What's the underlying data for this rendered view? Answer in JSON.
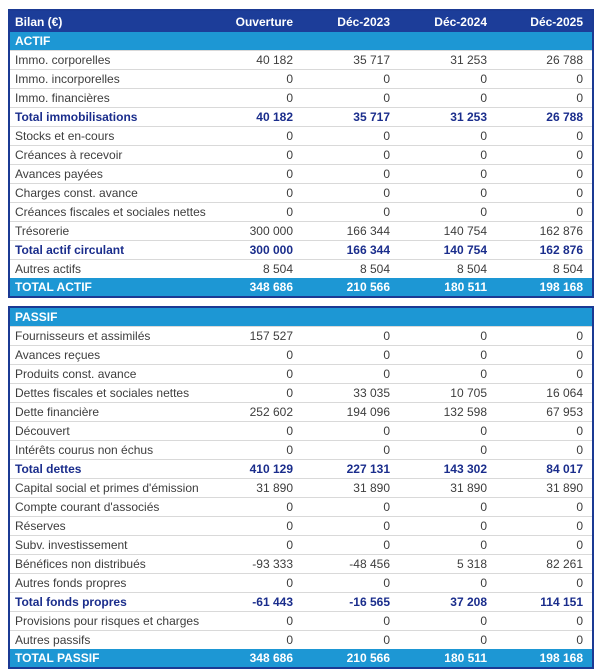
{
  "palette": {
    "header_navy": "#1c3d99",
    "table_border_navy": "#1b3a94",
    "section_blue": "#1d97d4",
    "subtotal_text_navy": "#1a2d8c",
    "row_text_gray": "#3d3d3d",
    "row_divider_gray": "#d9d9d9",
    "header_text": "#ffffff"
  },
  "header": {
    "title": "Bilan (€)",
    "columns": [
      "Ouverture",
      "Déc-2023",
      "Déc-2024",
      "Déc-2025"
    ]
  },
  "tables": {
    "actif": {
      "rows": [
        {
          "style": "section",
          "label": "ACTIF"
        },
        {
          "style": "normal",
          "label": "Immo. corporelles",
          "values": [
            "40 182",
            "35 717",
            "31 253",
            "26 788"
          ]
        },
        {
          "style": "normal",
          "label": "Immo. incorporelles",
          "values": [
            "0",
            "0",
            "0",
            "0"
          ]
        },
        {
          "style": "normal",
          "label": "Immo. financières",
          "values": [
            "0",
            "0",
            "0",
            "0"
          ]
        },
        {
          "style": "subtotal",
          "label": "Total immobilisations",
          "values": [
            "40 182",
            "35 717",
            "31 253",
            "26 788"
          ]
        },
        {
          "style": "normal",
          "label": "Stocks et en-cours",
          "values": [
            "0",
            "0",
            "0",
            "0"
          ]
        },
        {
          "style": "normal",
          "label": "Créances à recevoir",
          "values": [
            "0",
            "0",
            "0",
            "0"
          ]
        },
        {
          "style": "normal",
          "label": "Avances payées",
          "values": [
            "0",
            "0",
            "0",
            "0"
          ]
        },
        {
          "style": "normal",
          "label": "Charges const. avance",
          "values": [
            "0",
            "0",
            "0",
            "0"
          ]
        },
        {
          "style": "normal",
          "label": "Créances fiscales et sociales nettes",
          "values": [
            "0",
            "0",
            "0",
            "0"
          ]
        },
        {
          "style": "normal",
          "label": "Trésorerie",
          "values": [
            "300 000",
            "166 344",
            "140 754",
            "162 876"
          ]
        },
        {
          "style": "subtotal",
          "label": "Total actif circulant",
          "values": [
            "300 000",
            "166 344",
            "140 754",
            "162 876"
          ]
        },
        {
          "style": "normal",
          "label": "Autres actifs",
          "values": [
            "8 504",
            "8 504",
            "8 504",
            "8 504"
          ]
        },
        {
          "style": "grand",
          "label": "TOTAL ACTIF",
          "values": [
            "348 686",
            "210 566",
            "180 511",
            "198 168"
          ]
        }
      ]
    },
    "passif": {
      "rows": [
        {
          "style": "section",
          "label": "PASSIF"
        },
        {
          "style": "normal",
          "label": "Fournisseurs et assimilés",
          "values": [
            "157 527",
            "0",
            "0",
            "0"
          ]
        },
        {
          "style": "normal",
          "label": "Avances reçues",
          "values": [
            "0",
            "0",
            "0",
            "0"
          ]
        },
        {
          "style": "normal",
          "label": "Produits const. avance",
          "values": [
            "0",
            "0",
            "0",
            "0"
          ]
        },
        {
          "style": "normal",
          "label": "Dettes fiscales et sociales nettes",
          "values": [
            "0",
            "33 035",
            "10 705",
            "16 064"
          ]
        },
        {
          "style": "normal",
          "label": "Dette financière",
          "values": [
            "252 602",
            "194 096",
            "132 598",
            "67 953"
          ]
        },
        {
          "style": "normal",
          "label": "Découvert",
          "values": [
            "0",
            "0",
            "0",
            "0"
          ]
        },
        {
          "style": "normal",
          "label": "Intérêts courus non échus",
          "values": [
            "0",
            "0",
            "0",
            "0"
          ]
        },
        {
          "style": "subtotal",
          "label": "Total dettes",
          "values": [
            "410 129",
            "227 131",
            "143 302",
            "84 017"
          ]
        },
        {
          "style": "normal",
          "label": "Capital social et primes d'émission",
          "values": [
            "31 890",
            "31 890",
            "31 890",
            "31 890"
          ]
        },
        {
          "style": "normal",
          "label": "Compte courant d'associés",
          "values": [
            "0",
            "0",
            "0",
            "0"
          ]
        },
        {
          "style": "normal",
          "label": "Réserves",
          "values": [
            "0",
            "0",
            "0",
            "0"
          ]
        },
        {
          "style": "normal",
          "label": "Subv. investissement",
          "values": [
            "0",
            "0",
            "0",
            "0"
          ]
        },
        {
          "style": "normal",
          "label": "Bénéfices non distribués",
          "values": [
            "-93 333",
            "-48 456",
            "5 318",
            "82 261"
          ]
        },
        {
          "style": "normal",
          "label": "Autres fonds propres",
          "values": [
            "0",
            "0",
            "0",
            "0"
          ]
        },
        {
          "style": "subtotal",
          "label": "Total fonds propres",
          "values": [
            "-61 443",
            "-16 565",
            "37 208",
            "114 151"
          ]
        },
        {
          "style": "normal",
          "label": "Provisions pour risques et charges",
          "values": [
            "0",
            "0",
            "0",
            "0"
          ]
        },
        {
          "style": "normal",
          "label": "Autres passifs",
          "values": [
            "0",
            "0",
            "0",
            "0"
          ]
        },
        {
          "style": "grand",
          "label": "TOTAL PASSIF",
          "values": [
            "348 686",
            "210 566",
            "180 511",
            "198 168"
          ]
        }
      ]
    }
  },
  "chart_data": {
    "type": "table",
    "title": "Bilan (€)",
    "columns": [
      "Ouverture",
      "Déc-2023",
      "Déc-2024",
      "Déc-2025"
    ],
    "sections": [
      {
        "name": "ACTIF",
        "rows": [
          {
            "label": "Immo. corporelles",
            "values": [
              40182,
              35717,
              31253,
              26788
            ]
          },
          {
            "label": "Immo. incorporelles",
            "values": [
              0,
              0,
              0,
              0
            ]
          },
          {
            "label": "Immo. financières",
            "values": [
              0,
              0,
              0,
              0
            ]
          },
          {
            "label": "Total immobilisations",
            "values": [
              40182,
              35717,
              31253,
              26788
            ],
            "emphasis": "subtotal"
          },
          {
            "label": "Stocks et en-cours",
            "values": [
              0,
              0,
              0,
              0
            ]
          },
          {
            "label": "Créances à recevoir",
            "values": [
              0,
              0,
              0,
              0
            ]
          },
          {
            "label": "Avances payées",
            "values": [
              0,
              0,
              0,
              0
            ]
          },
          {
            "label": "Charges const. avance",
            "values": [
              0,
              0,
              0,
              0
            ]
          },
          {
            "label": "Créances fiscales et sociales nettes",
            "values": [
              0,
              0,
              0,
              0
            ]
          },
          {
            "label": "Trésorerie",
            "values": [
              300000,
              166344,
              140754,
              162876
            ]
          },
          {
            "label": "Total actif circulant",
            "values": [
              300000,
              166344,
              140754,
              162876
            ],
            "emphasis": "subtotal"
          },
          {
            "label": "Autres actifs",
            "values": [
              8504,
              8504,
              8504,
              8504
            ]
          },
          {
            "label": "TOTAL ACTIF",
            "values": [
              348686,
              210566,
              180511,
              198168
            ],
            "emphasis": "total"
          }
        ]
      },
      {
        "name": "PASSIF",
        "rows": [
          {
            "label": "Fournisseurs et assimilés",
            "values": [
              157527,
              0,
              0,
              0
            ]
          },
          {
            "label": "Avances reçues",
            "values": [
              0,
              0,
              0,
              0
            ]
          },
          {
            "label": "Produits const. avance",
            "values": [
              0,
              0,
              0,
              0
            ]
          },
          {
            "label": "Dettes fiscales et sociales nettes",
            "values": [
              0,
              33035,
              10705,
              16064
            ]
          },
          {
            "label": "Dette financière",
            "values": [
              252602,
              194096,
              132598,
              67953
            ]
          },
          {
            "label": "Découvert",
            "values": [
              0,
              0,
              0,
              0
            ]
          },
          {
            "label": "Intérêts courus non échus",
            "values": [
              0,
              0,
              0,
              0
            ]
          },
          {
            "label": "Total dettes",
            "values": [
              410129,
              227131,
              143302,
              84017
            ],
            "emphasis": "subtotal"
          },
          {
            "label": "Capital social et primes d'émission",
            "values": [
              31890,
              31890,
              31890,
              31890
            ]
          },
          {
            "label": "Compte courant d'associés",
            "values": [
              0,
              0,
              0,
              0
            ]
          },
          {
            "label": "Réserves",
            "values": [
              0,
              0,
              0,
              0
            ]
          },
          {
            "label": "Subv. investissement",
            "values": [
              0,
              0,
              0,
              0
            ]
          },
          {
            "label": "Bénéfices non distribués",
            "values": [
              -93333,
              -48456,
              5318,
              82261
            ]
          },
          {
            "label": "Autres fonds propres",
            "values": [
              0,
              0,
              0,
              0
            ]
          },
          {
            "label": "Total fonds propres",
            "values": [
              -61443,
              -16565,
              37208,
              114151
            ],
            "emphasis": "subtotal"
          },
          {
            "label": "Provisions pour risques et charges",
            "values": [
              0,
              0,
              0,
              0
            ]
          },
          {
            "label": "Autres passifs",
            "values": [
              0,
              0,
              0,
              0
            ]
          },
          {
            "label": "TOTAL PASSIF",
            "values": [
              348686,
              210566,
              180511,
              198168
            ],
            "emphasis": "total"
          }
        ]
      }
    ]
  }
}
